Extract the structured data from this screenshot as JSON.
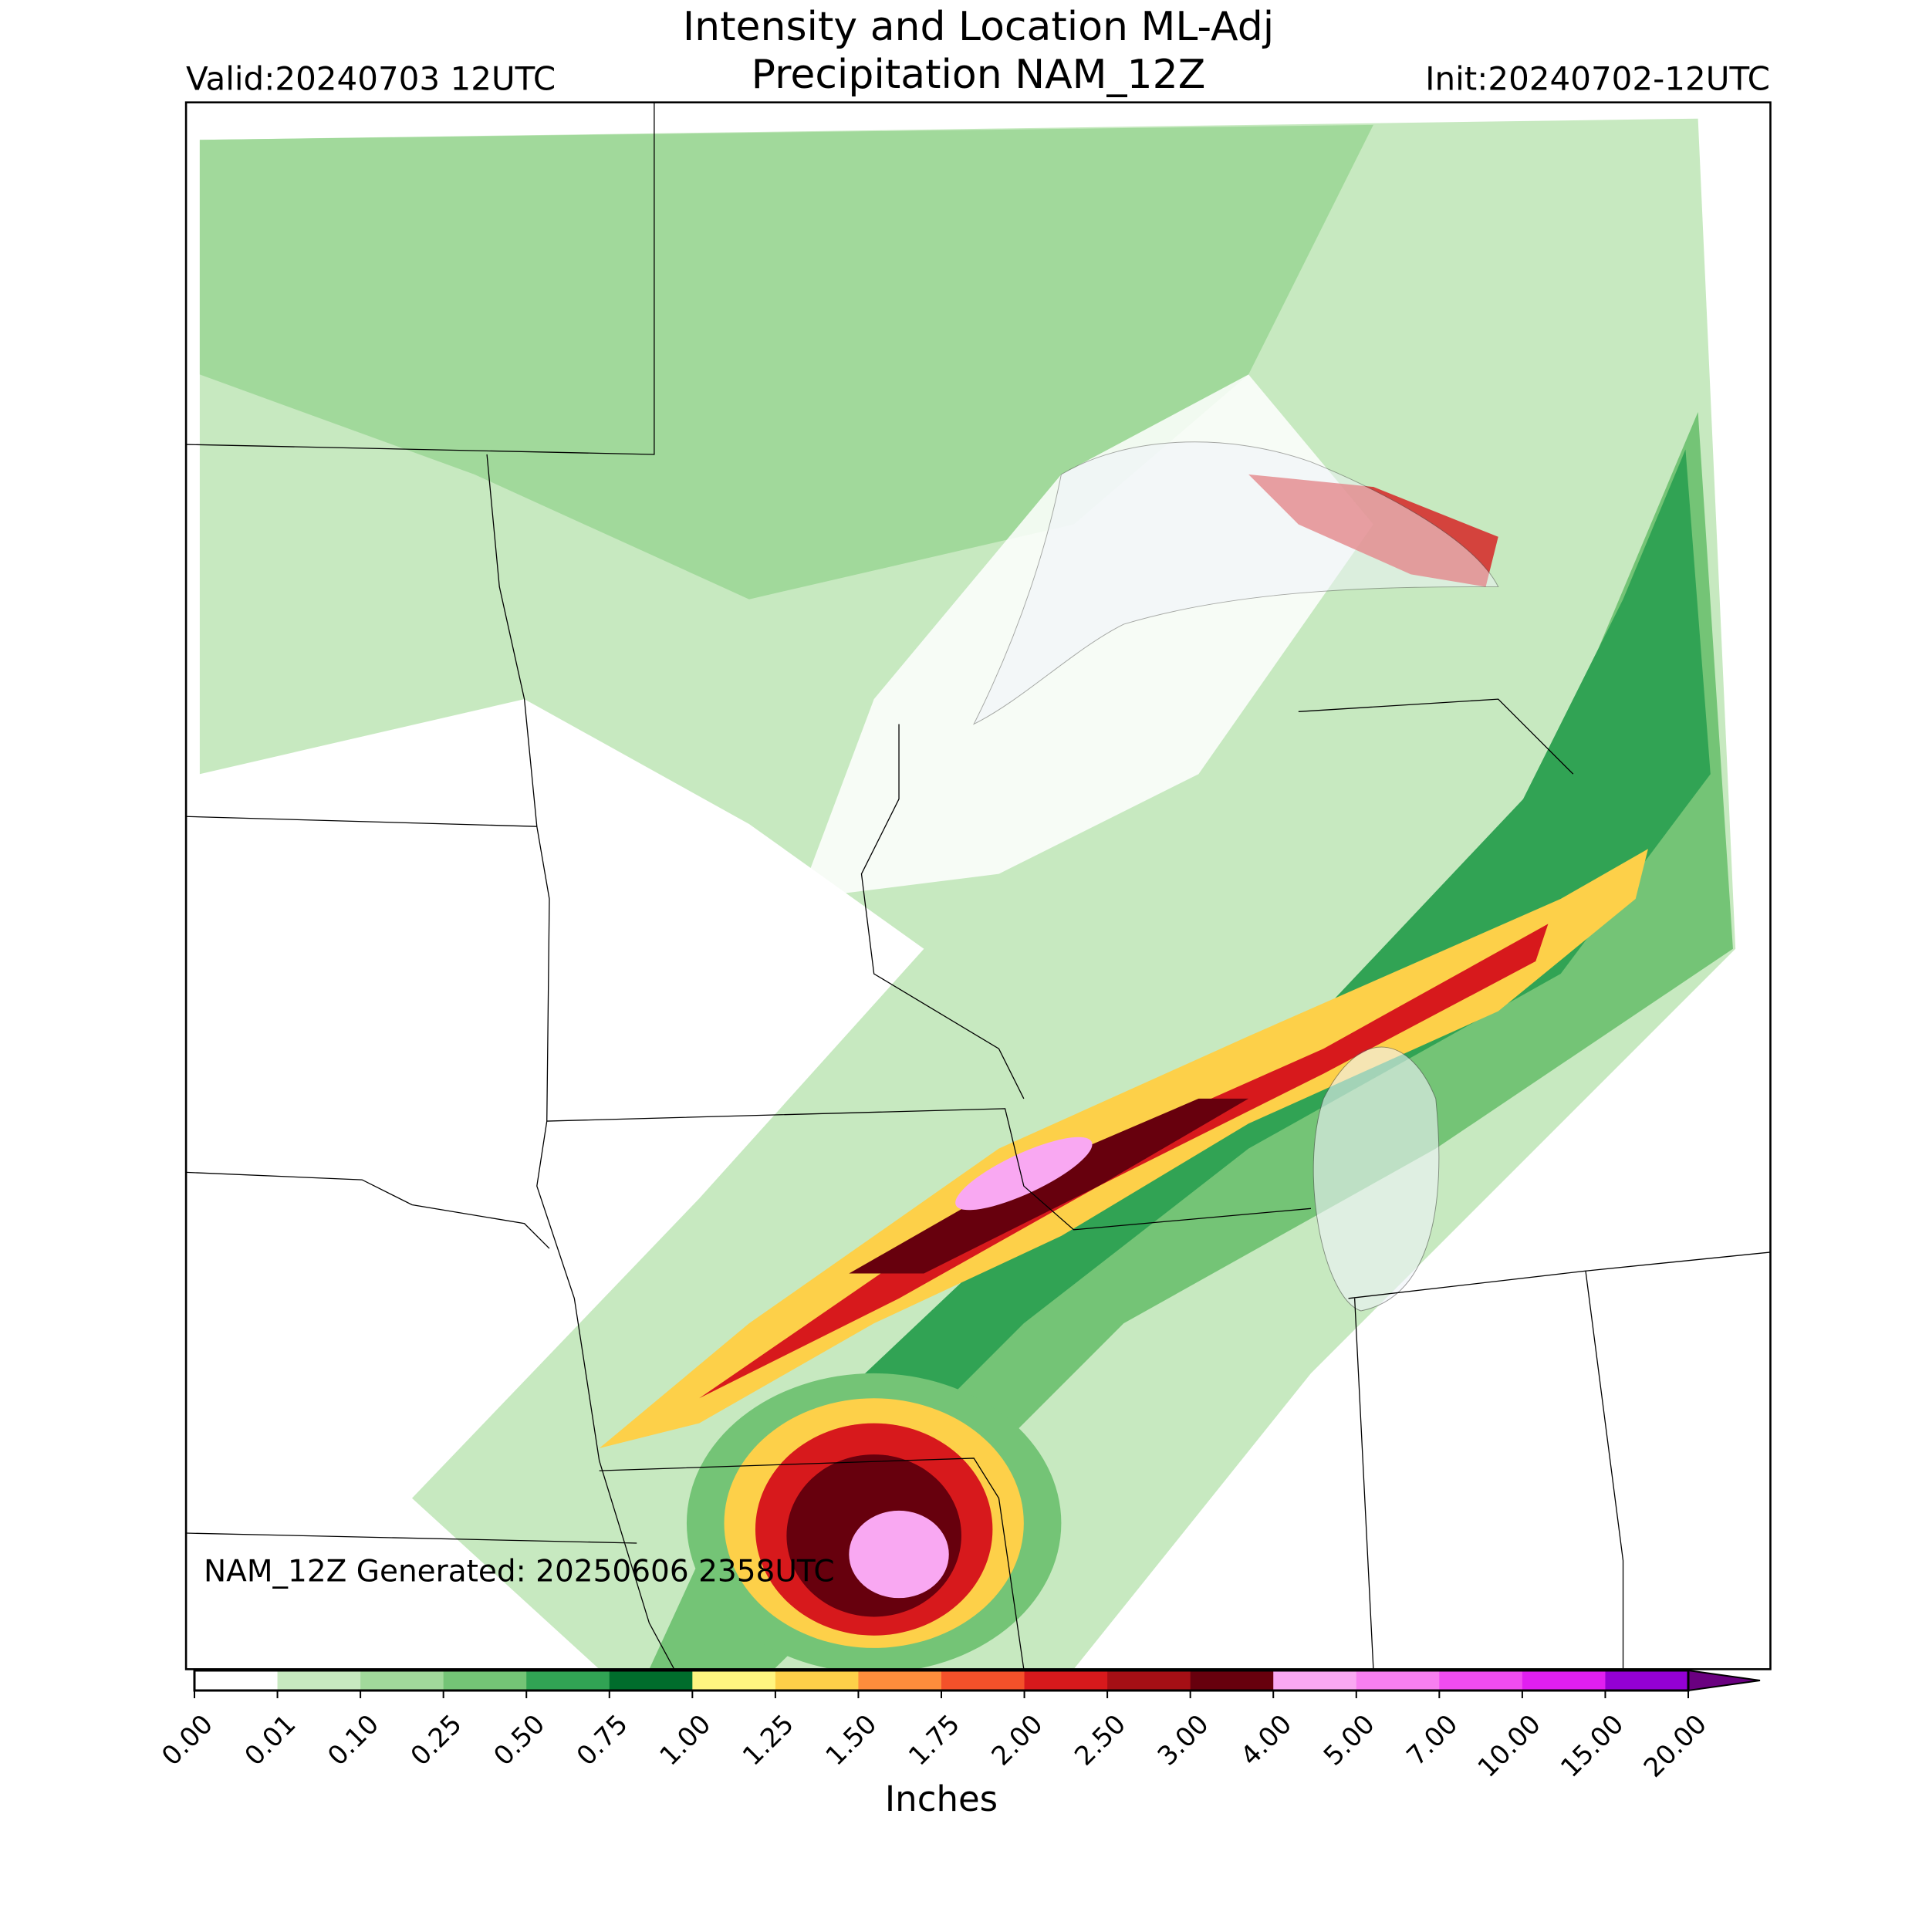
{
  "header": {
    "title": [
      "Intensity and Location ML-Adj",
      "Precipitation NAM_12Z"
    ],
    "valid": "Valid:20240703 12UTC",
    "init": "Init:20240702-12UTC"
  },
  "map": {
    "note": "NAM_12Z Generated: 20250606 2358UTC"
  },
  "colorbar": {
    "ticks": [
      "0.00",
      "0.01",
      "0.10",
      "0.25",
      "0.50",
      "0.75",
      "1.00",
      "1.25",
      "1.50",
      "1.75",
      "2.00",
      "2.50",
      "3.00",
      "4.00",
      "5.00",
      "7.00",
      "10.00",
      "15.00",
      "20.00"
    ],
    "colors": [
      "#ffffff",
      "#c7e9c0",
      "#a1d99b",
      "#74c476",
      "#31a354",
      "#006d2c",
      "#fff580",
      "#fdd049",
      "#fd8d3c",
      "#f4512a",
      "#d7191c",
      "#a50f15",
      "#67000d",
      "#f9a8f2",
      "#f77ff0",
      "#f04cf0",
      "#e01ff0",
      "#9400d3"
    ],
    "extend_color": "#6a0080",
    "label": "Inches"
  }
}
